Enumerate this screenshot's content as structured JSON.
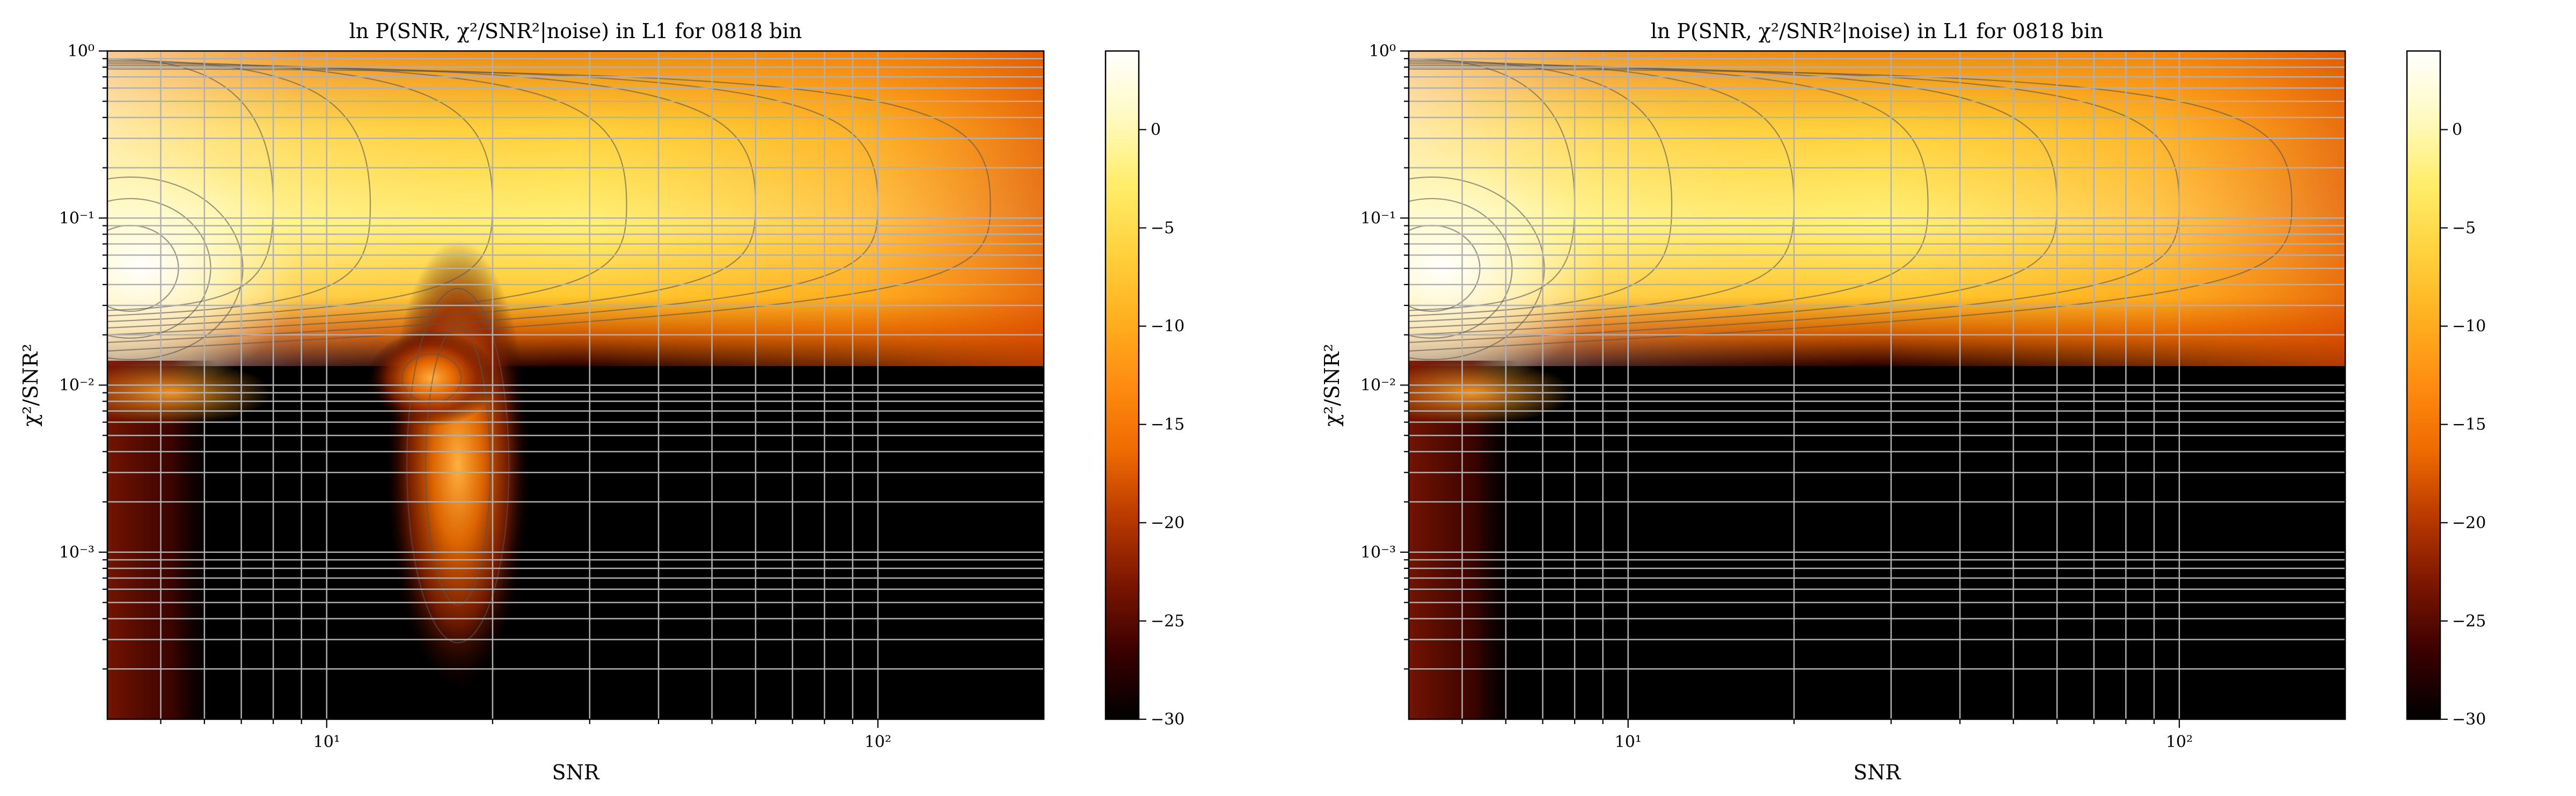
{
  "colors": {
    "colormap": [
      "#000000",
      "#3a0000",
      "#7a1500",
      "#b83800",
      "#ee6a00",
      "#ff8c10",
      "#ffb020",
      "#ffd23d",
      "#ffed6a",
      "#fffac0",
      "#ffffff"
    ],
    "grid": "#b0b0b0",
    "contour": "#555555",
    "axes": "#000000"
  },
  "chart_data": [
    {
      "type": "heatmap",
      "title": "ln P(SNR, χ²/SNR²|noise) in L1 for 0818 bin",
      "xlabel": "SNR",
      "ylabel": "χ²/SNR²",
      "x_scale": "log",
      "y_scale": "log",
      "xlim": [
        4,
        200
      ],
      "ylim": [
        0.0001,
        1
      ],
      "x_tick_labels": [
        {
          "value": 10,
          "label": "10¹"
        },
        {
          "value": 100,
          "label": "10²"
        }
      ],
      "y_tick_labels": [
        {
          "value": 0.001,
          "label": "10⁻³"
        },
        {
          "value": 0.01,
          "label": "10⁻²"
        },
        {
          "value": 0.1,
          "label": "10⁻¹"
        },
        {
          "value": 1,
          "label": "10⁰"
        }
      ],
      "colorbar": {
        "range": [
          -30,
          4
        ],
        "ticks": [
          0,
          -5,
          -10,
          -15,
          -20,
          -25,
          -30
        ],
        "tick_labels": [
          "0",
          "−5",
          "−10",
          "−15",
          "−20",
          "−25",
          "−30"
        ]
      },
      "grid": true,
      "glitch_lobe": true
    },
    {
      "type": "heatmap",
      "title": "ln P(SNR, χ²/SNR²|noise) in L1 for 0818 bin",
      "xlabel": "SNR",
      "ylabel": "χ²/SNR²",
      "x_scale": "log",
      "y_scale": "log",
      "xlim": [
        4,
        200
      ],
      "ylim": [
        0.0001,
        1
      ],
      "x_tick_labels": [
        {
          "value": 10,
          "label": "10¹"
        },
        {
          "value": 100,
          "label": "10²"
        }
      ],
      "y_tick_labels": [
        {
          "value": 0.001,
          "label": "10⁻³"
        },
        {
          "value": 0.01,
          "label": "10⁻²"
        },
        {
          "value": 0.1,
          "label": "10⁻¹"
        },
        {
          "value": 1,
          "label": "10⁰"
        }
      ],
      "colorbar": {
        "range": [
          -30,
          4
        ],
        "ticks": [
          0,
          -5,
          -10,
          -15,
          -20,
          -25,
          -30
        ],
        "tick_labels": [
          "0",
          "−5",
          "−10",
          "−15",
          "−20",
          "−25",
          "−30"
        ]
      },
      "grid": true,
      "glitch_lobe": false
    }
  ]
}
